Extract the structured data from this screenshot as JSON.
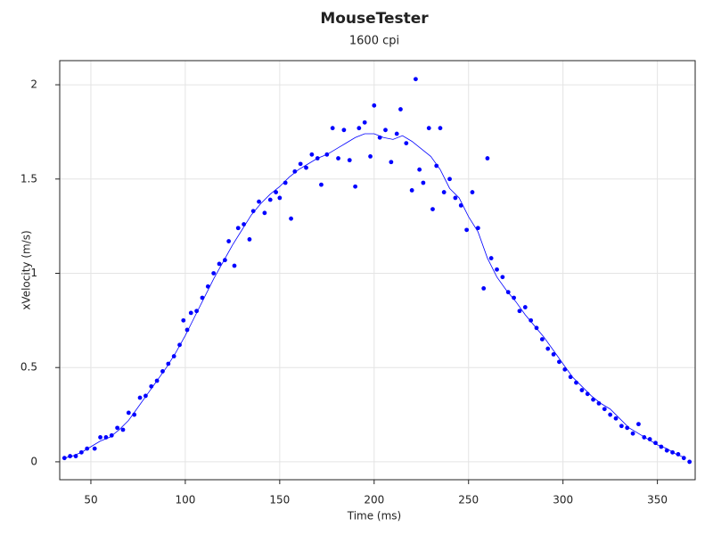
{
  "chart_data": {
    "type": "scatter",
    "title": "MouseTester",
    "subtitle": "1600 cpi",
    "x_label": "Time (ms)",
    "y_label": "xVelocity (m/s)",
    "xlim": [
      33.5,
      370
    ],
    "ylim": [
      -0.095,
      2.128
    ],
    "xticks": [
      50,
      100,
      150,
      200,
      250,
      300,
      350
    ],
    "yticks": [
      0,
      0.5,
      1,
      1.5,
      2
    ],
    "grid": true,
    "series": [
      {
        "type": "scatter",
        "color": "#0000ff",
        "x": [
          36,
          39,
          42,
          45,
          48,
          52,
          55,
          58,
          61,
          64,
          67,
          70,
          73,
          76,
          79,
          82,
          85,
          88,
          91,
          94,
          97,
          99,
          101,
          103,
          106,
          109,
          112,
          115,
          118,
          121,
          123,
          126,
          128,
          131,
          134,
          136,
          139,
          142,
          145,
          148,
          150,
          153,
          156,
          158,
          161,
          164,
          167,
          170,
          172,
          175,
          178,
          181,
          184,
          187,
          190,
          192,
          195,
          198,
          200,
          203,
          206,
          209,
          212,
          214,
          217,
          220,
          222,
          224,
          226,
          229,
          231,
          233,
          235,
          237,
          240,
          243,
          246,
          249,
          252,
          255,
          258,
          260,
          262,
          265,
          268,
          271,
          274,
          277,
          280,
          283,
          286,
          289,
          292,
          295,
          298,
          301,
          304,
          307,
          310,
          313,
          316,
          319,
          322,
          325,
          328,
          331,
          334,
          337,
          340,
          343,
          346,
          349,
          352,
          355,
          358,
          361,
          364,
          367
        ],
        "values": [
          0.02,
          0.03,
          0.03,
          0.05,
          0.07,
          0.07,
          0.13,
          0.13,
          0.14,
          0.18,
          0.17,
          0.26,
          0.25,
          0.34,
          0.35,
          0.4,
          0.43,
          0.48,
          0.52,
          0.56,
          0.62,
          0.75,
          0.7,
          0.79,
          0.8,
          0.87,
          0.93,
          1.0,
          1.05,
          1.07,
          1.17,
          1.04,
          1.24,
          1.26,
          1.18,
          1.33,
          1.38,
          1.32,
          1.39,
          1.43,
          1.4,
          1.48,
          1.29,
          1.54,
          1.58,
          1.56,
          1.63,
          1.61,
          1.47,
          1.63,
          1.77,
          1.61,
          1.76,
          1.6,
          1.46,
          1.77,
          1.8,
          1.62,
          1.89,
          1.72,
          1.76,
          1.59,
          1.74,
          1.87,
          1.69,
          1.44,
          2.03,
          1.55,
          1.48,
          1.77,
          1.34,
          1.57,
          1.77,
          1.43,
          1.5,
          1.4,
          1.36,
          1.23,
          1.43,
          1.24,
          0.92,
          1.61,
          1.08,
          1.02,
          0.98,
          0.9,
          0.87,
          0.8,
          0.82,
          0.75,
          0.71,
          0.65,
          0.6,
          0.57,
          0.53,
          0.49,
          0.45,
          0.42,
          0.38,
          0.36,
          0.33,
          0.31,
          0.28,
          0.25,
          0.23,
          0.19,
          0.18,
          0.15,
          0.2,
          0.13,
          0.12,
          0.1,
          0.08,
          0.06,
          0.05,
          0.04,
          0.02,
          0.0
        ]
      },
      {
        "type": "line",
        "color": "#0000ff",
        "x": [
          36,
          40,
          45,
          50,
          55,
          60,
          65,
          70,
          75,
          80,
          85,
          90,
          95,
          100,
          105,
          110,
          115,
          120,
          125,
          130,
          135,
          140,
          145,
          150,
          155,
          160,
          165,
          170,
          175,
          180,
          185,
          190,
          195,
          200,
          205,
          210,
          215,
          220,
          225,
          230,
          235,
          240,
          245,
          250,
          255,
          260,
          265,
          270,
          275,
          280,
          285,
          290,
          295,
          300,
          305,
          310,
          315,
          320,
          325,
          330,
          335,
          340,
          345,
          350,
          355,
          360,
          365
        ],
        "values": [
          0.02,
          0.03,
          0.05,
          0.08,
          0.11,
          0.13,
          0.17,
          0.22,
          0.29,
          0.36,
          0.43,
          0.5,
          0.58,
          0.67,
          0.77,
          0.87,
          0.97,
          1.06,
          1.15,
          1.23,
          1.31,
          1.37,
          1.42,
          1.46,
          1.51,
          1.55,
          1.58,
          1.61,
          1.63,
          1.66,
          1.69,
          1.72,
          1.74,
          1.74,
          1.72,
          1.71,
          1.73,
          1.7,
          1.66,
          1.62,
          1.55,
          1.45,
          1.4,
          1.3,
          1.22,
          1.08,
          0.98,
          0.91,
          0.85,
          0.78,
          0.72,
          0.66,
          0.59,
          0.52,
          0.45,
          0.4,
          0.35,
          0.31,
          0.28,
          0.23,
          0.18,
          0.15,
          0.12,
          0.09,
          0.07,
          0.04,
          0.02
        ]
      }
    ]
  }
}
